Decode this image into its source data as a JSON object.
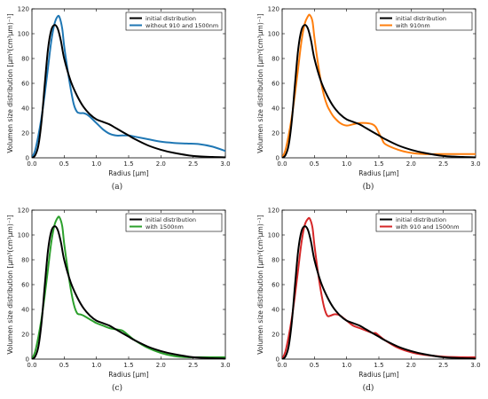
{
  "chart_data": [
    {
      "type": "line",
      "caption": "(a)",
      "xlabel": "Radius [μm]",
      "ylabel": "Volumen size distribution [μm³(cm³μm)⁻¹]",
      "xlim": [
        0,
        3
      ],
      "ylim": [
        0,
        120
      ],
      "xticks": [
        "0.0",
        "0.5",
        "1.0",
        "1.5",
        "2.0",
        "2.5",
        "3.0"
      ],
      "yticks": [
        "0",
        "20",
        "40",
        "60",
        "80",
        "100",
        "120"
      ],
      "grid": false,
      "legend_position": "top-right",
      "series": [
        {
          "name": "initial distribution",
          "color": "#000000",
          "x": [
            0,
            0.05,
            0.1,
            0.15,
            0.2,
            0.25,
            0.3,
            0.35,
            0.4,
            0.45,
            0.5,
            0.6,
            0.7,
            0.8,
            0.9,
            1.0,
            1.1,
            1.2,
            1.3,
            1.4,
            1.5,
            1.6,
            1.8,
            2.0,
            2.2,
            2.5,
            2.8,
            3.0
          ],
          "y": [
            0,
            2,
            10,
            30,
            60,
            88,
            103,
            107,
            104,
            94,
            80,
            62,
            50,
            41,
            35,
            31,
            29,
            27,
            24,
            21,
            18,
            15,
            10,
            6.5,
            4,
            1.5,
            0.7,
            0.4
          ]
        },
        {
          "name": "without 910 and 1500nm",
          "color": "#1f77b4",
          "x": [
            0,
            0.05,
            0.1,
            0.15,
            0.2,
            0.25,
            0.3,
            0.35,
            0.4,
            0.43,
            0.47,
            0.5,
            0.55,
            0.6,
            0.65,
            0.7,
            0.75,
            0.8,
            0.85,
            0.9,
            1.0,
            1.1,
            1.2,
            1.3,
            1.4,
            1.5,
            1.6,
            1.8,
            2.0,
            2.2,
            2.4,
            2.6,
            2.8,
            3.0
          ],
          "y": [
            0,
            6,
            18,
            33,
            52,
            73,
            94,
            108,
            114,
            113,
            104,
            90,
            72,
            56,
            43,
            37,
            36,
            36,
            35,
            33,
            28,
            23,
            19.5,
            18,
            18,
            18,
            17,
            15,
            13,
            12,
            11.5,
            11,
            9,
            5.5
          ]
        }
      ]
    },
    {
      "type": "line",
      "caption": "(b)",
      "xlabel": "Radius [μm]",
      "ylabel": "Volumen size distribution [μm³(cm³μm)⁻¹]",
      "xlim": [
        0,
        3
      ],
      "ylim": [
        0,
        120
      ],
      "xticks": [
        "0.0",
        "0.5",
        "1.0",
        "1.5",
        "2.0",
        "2.5",
        "3.0"
      ],
      "yticks": [
        "0",
        "20",
        "40",
        "60",
        "80",
        "100",
        "120"
      ],
      "grid": false,
      "legend_position": "top-right",
      "series": [
        {
          "name": "initial distribution",
          "color": "#000000",
          "x": [
            0,
            0.05,
            0.1,
            0.15,
            0.2,
            0.25,
            0.3,
            0.35,
            0.4,
            0.45,
            0.5,
            0.6,
            0.7,
            0.8,
            0.9,
            1.0,
            1.1,
            1.2,
            1.3,
            1.4,
            1.5,
            1.6,
            1.8,
            2.0,
            2.2,
            2.5,
            2.8,
            3.0
          ],
          "y": [
            0,
            2,
            10,
            30,
            60,
            88,
            103,
            107,
            104,
            94,
            80,
            62,
            50,
            41,
            35,
            31,
            29,
            27,
            24,
            21,
            18,
            15,
            10,
            6.5,
            4,
            1.5,
            0.7,
            0.4
          ]
        },
        {
          "name": "with 910nm",
          "color": "#ff7f0e",
          "x": [
            0,
            0.05,
            0.1,
            0.15,
            0.2,
            0.25,
            0.3,
            0.35,
            0.4,
            0.43,
            0.47,
            0.5,
            0.55,
            0.6,
            0.65,
            0.7,
            0.75,
            0.8,
            0.9,
            1.0,
            1.1,
            1.2,
            1.3,
            1.4,
            1.45,
            1.5,
            1.55,
            1.6,
            1.8,
            2.0,
            2.2,
            2.4,
            2.6,
            2.8,
            3.0
          ],
          "y": [
            0,
            6,
            18,
            33,
            52,
            73,
            94,
            108,
            114,
            115,
            110,
            97,
            78,
            62,
            50,
            42,
            37,
            33,
            28,
            26,
            27,
            28,
            28,
            27,
            25,
            20,
            15,
            11,
            6.5,
            4,
            3,
            3,
            3,
            3,
            3
          ]
        }
      ]
    },
    {
      "type": "line",
      "caption": "(c)",
      "xlabel": "Radius [μm]",
      "ylabel": "Volumen size distribution [μm³(cm³μm)⁻¹]",
      "xlim": [
        0,
        3
      ],
      "ylim": [
        0,
        120
      ],
      "xticks": [
        "0.0",
        "0.5",
        "1.0",
        "1.5",
        "2.0",
        "2.5",
        "3.0"
      ],
      "yticks": [
        "0",
        "20",
        "40",
        "60",
        "80",
        "100",
        "120"
      ],
      "grid": false,
      "legend_position": "top-right",
      "series": [
        {
          "name": "initial distribution",
          "color": "#000000",
          "x": [
            0,
            0.05,
            0.1,
            0.15,
            0.2,
            0.25,
            0.3,
            0.35,
            0.4,
            0.45,
            0.5,
            0.6,
            0.7,
            0.8,
            0.9,
            1.0,
            1.1,
            1.2,
            1.3,
            1.4,
            1.5,
            1.6,
            1.8,
            2.0,
            2.2,
            2.5,
            2.8,
            3.0
          ],
          "y": [
            0,
            2,
            10,
            30,
            60,
            88,
            103,
            107,
            104,
            94,
            80,
            62,
            50,
            41,
            35,
            31,
            29,
            27,
            24,
            21,
            18,
            15,
            10,
            6.5,
            4,
            1.5,
            0.7,
            0.4
          ]
        },
        {
          "name": "with 1500nm",
          "color": "#2ca02c",
          "x": [
            0,
            0.05,
            0.1,
            0.15,
            0.2,
            0.25,
            0.3,
            0.35,
            0.4,
            0.43,
            0.47,
            0.5,
            0.55,
            0.6,
            0.65,
            0.7,
            0.75,
            0.8,
            0.9,
            1.0,
            1.1,
            1.2,
            1.3,
            1.4,
            1.5,
            1.6,
            1.8,
            2.0,
            2.2,
            2.4,
            2.6,
            2.8,
            3.0
          ],
          "y": [
            0,
            6,
            18,
            33,
            52,
            73,
            94,
            108,
            114,
            114,
            107,
            93,
            74,
            57,
            44,
            37,
            36,
            35,
            32,
            29,
            27,
            25,
            24,
            23,
            19,
            15,
            9,
            5,
            2.5,
            1.5,
            1.5,
            1.5,
            1.5
          ]
        }
      ]
    },
    {
      "type": "line",
      "caption": "(d)",
      "xlabel": "Radius [μm]",
      "ylabel": "Volumen size distribution [μm³(cm³μm)⁻¹]",
      "xlim": [
        0,
        3
      ],
      "ylim": [
        0,
        120
      ],
      "xticks": [
        "0.0",
        "0.5",
        "1.0",
        "1.5",
        "2.0",
        "2.5",
        "3.0"
      ],
      "yticks": [
        "0",
        "20",
        "40",
        "60",
        "80",
        "100",
        "120"
      ],
      "grid": false,
      "legend_position": "top-right",
      "series": [
        {
          "name": "initial distribution",
          "color": "#000000",
          "x": [
            0,
            0.05,
            0.1,
            0.15,
            0.2,
            0.25,
            0.3,
            0.35,
            0.4,
            0.45,
            0.5,
            0.6,
            0.7,
            0.8,
            0.9,
            1.0,
            1.1,
            1.2,
            1.3,
            1.4,
            1.5,
            1.6,
            1.8,
            2.0,
            2.2,
            2.5,
            2.8,
            3.0
          ],
          "y": [
            0,
            2,
            10,
            30,
            60,
            88,
            103,
            107,
            104,
            94,
            80,
            62,
            50,
            41,
            35,
            31,
            29,
            27,
            24,
            21,
            18,
            15,
            10,
            6.5,
            4,
            1.5,
            0.7,
            0.4
          ]
        },
        {
          "name": "with 910 and 1500nm",
          "color": "#d62728",
          "x": [
            0,
            0.05,
            0.1,
            0.15,
            0.2,
            0.25,
            0.3,
            0.35,
            0.4,
            0.43,
            0.47,
            0.5,
            0.55,
            0.6,
            0.65,
            0.7,
            0.75,
            0.8,
            0.85,
            0.9,
            1.0,
            1.1,
            1.2,
            1.3,
            1.4,
            1.45,
            1.5,
            1.6,
            1.8,
            2.0,
            2.2,
            2.5,
            2.8,
            3.0
          ],
          "y": [
            0,
            6,
            18,
            33,
            52,
            73,
            94,
            108,
            113,
            113,
            106,
            92,
            72,
            55,
            42,
            35,
            35,
            36,
            36,
            35,
            31,
            27,
            25,
            23,
            21,
            21,
            19,
            15,
            9,
            5.5,
            3.5,
            2,
            1.5,
            1.5
          ]
        }
      ]
    }
  ]
}
